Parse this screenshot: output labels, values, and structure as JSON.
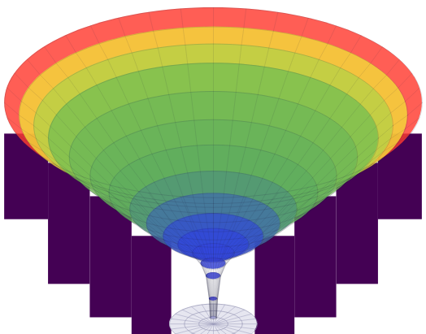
{
  "chart_data": {
    "type": "surface",
    "tick_labels": false,
    "xlim": [
      -1.02,
      1.02
    ],
    "ylim": [
      -0.05,
      1.55
    ],
    "profile": {
      "r": [
        1.0,
        0.93,
        0.86,
        0.79,
        0.69,
        0.59,
        0.5,
        0.4,
        0.32,
        0.24,
        0.17,
        0.1,
        0.06,
        0.035,
        0.02,
        0.015
      ],
      "z": [
        1.06,
        1.0,
        0.95,
        0.89,
        0.8,
        0.71,
        0.63,
        0.55,
        0.48,
        0.42,
        0.38,
        0.34,
        0.29,
        0.23,
        0.12,
        0.03
      ]
    },
    "shells": [
      {
        "r0": 0.79,
        "r1": 1.0,
        "z0": 0.5,
        "z1": 0.91
      },
      {
        "r0": 0.59,
        "r1": 0.79,
        "z0": 0.19,
        "z1": 0.77
      },
      {
        "r0": 0.39,
        "r1": 0.59,
        "z0": 0.03,
        "z1": 0.61
      },
      {
        "r0": 0.2,
        "r1": 0.39,
        "z0": -0.05,
        "z1": 0.42
      }
    ],
    "base": {
      "r": 0.21,
      "z": 0
    }
  }
}
